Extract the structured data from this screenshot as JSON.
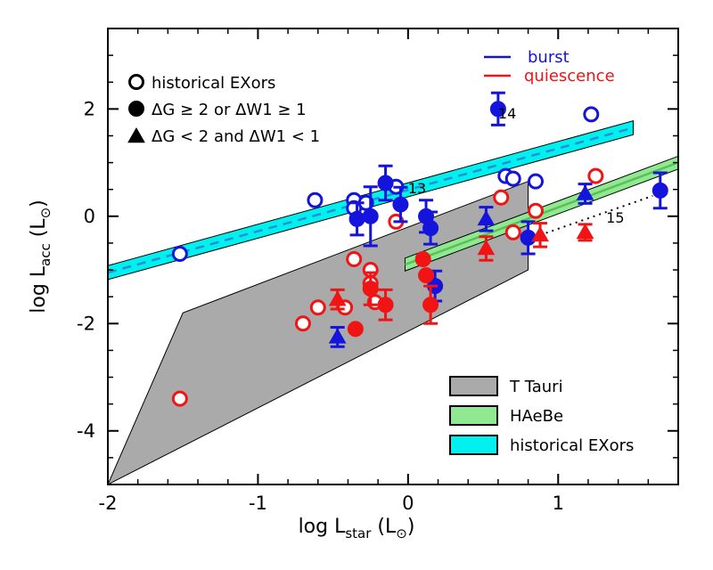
{
  "chart_data": {
    "type": "scatter",
    "xlabel": "log L",
    "xlabel_sub": "star",
    "xlabel_unit": " (L",
    "ylabel": "log L",
    "ylabel_sub": "acc",
    "ylabel_unit": " (L",
    "sun_symbol": "⊙",
    "close_paren": ")",
    "xlim": [
      -2,
      1.8
    ],
    "ylim": [
      -5,
      3.5
    ],
    "x_ticks": [
      -2,
      -1,
      0,
      1
    ],
    "x_tick_labels": [
      "-2",
      "-1",
      "0",
      "1"
    ],
    "y_ticks": [
      -4,
      -2,
      0,
      2
    ],
    "y_tick_labels": [
      "-4",
      "-2",
      "0",
      "2"
    ],
    "grid": false,
    "colors": {
      "burst": "#1414dc",
      "quiescence": "#f01414",
      "ttauri": "#aaaaaa",
      "haebe": "#90e890",
      "exors": "#00f0f0"
    },
    "regions": [
      {
        "name": "T Tauri",
        "polygon": [
          [
            -2,
            -5
          ],
          [
            -1.5,
            -1.8
          ],
          [
            0.8,
            0.65
          ],
          [
            0.8,
            -1.0
          ],
          [
            -2,
            -5
          ]
        ]
      },
      {
        "name": "HAeBe",
        "center": [
          [
            -0.02,
            -0.9
          ],
          [
            1.8,
            1.0
          ]
        ],
        "half_width": 0.12
      },
      {
        "name": "historical EXors",
        "center": [
          [
            -2,
            -1.05
          ],
          [
            1.5,
            1.65
          ]
        ],
        "half_width": 0.13
      }
    ],
    "top_legend": {
      "burst": "burst",
      "quiescence": "quiescence",
      "historical": "historical EXors",
      "big": "ΔG ≥ 2 or ΔW1 ≥ 1",
      "small": "ΔG < 2 and ΔW1 < 1"
    },
    "bottom_legend": [
      "T Tauri",
      "HAeBe",
      "historical EXors"
    ],
    "annotations": [
      {
        "text": "13",
        "x": 0.0,
        "y": 0.43
      },
      {
        "text": "14",
        "x": 0.6,
        "y": 1.82
      },
      {
        "text": "15",
        "x": 1.32,
        "y": -0.12
      }
    ],
    "dotted_line": [
      [
        0.88,
        -0.35
      ],
      [
        1.63,
        0.38
      ]
    ],
    "series": [
      {
        "name": "historical EXors (burst)",
        "marker": "open-circle",
        "color": "#1414dc",
        "points": [
          [
            -1.52,
            -0.7
          ],
          [
            -0.62,
            0.3
          ],
          [
            -0.36,
            0.3
          ],
          [
            -0.36,
            0.15
          ],
          [
            -0.28,
            0.25
          ],
          [
            -0.08,
            0.55
          ],
          [
            0.65,
            0.75
          ],
          [
            0.7,
            0.7
          ],
          [
            0.85,
            0.65
          ],
          [
            1.22,
            1.9
          ]
        ]
      },
      {
        "name": "historical EXors (quiescence)",
        "marker": "open-circle",
        "color": "#f01414",
        "points": [
          [
            -1.52,
            -3.4
          ],
          [
            -0.7,
            -2.0
          ],
          [
            -0.6,
            -1.7
          ],
          [
            -0.42,
            -1.7
          ],
          [
            -0.36,
            -0.8
          ],
          [
            -0.25,
            -1.0
          ],
          [
            -0.25,
            -1.25
          ],
          [
            -0.22,
            -1.6
          ],
          [
            -0.08,
            -0.1
          ],
          [
            0.62,
            0.35
          ],
          [
            0.7,
            -0.3
          ],
          [
            0.85,
            0.1
          ],
          [
            1.25,
            0.75
          ]
        ]
      },
      {
        "name": "ΔG ≥ 2 or ΔW1 ≥ 1 (burst)",
        "marker": "filled-circle",
        "color": "#1414dc",
        "points": [
          [
            -0.34,
            -0.05,
            0.3
          ],
          [
            -0.25,
            0.0,
            0.55
          ],
          [
            -0.15,
            0.62,
            0.32
          ],
          [
            -0.05,
            0.22,
            0.32
          ],
          [
            0.12,
            0.0,
            0.3
          ],
          [
            0.15,
            -0.22,
            0.3
          ],
          [
            0.18,
            -1.3,
            0.28
          ],
          [
            0.6,
            2.0,
            0.3
          ],
          [
            0.8,
            -0.4,
            0.3
          ],
          [
            1.68,
            0.48,
            0.33
          ]
        ]
      },
      {
        "name": "ΔG ≥ 2 or ΔW1 ≥ 1 (quiescence)",
        "marker": "filled-circle",
        "color": "#f01414",
        "points": [
          [
            -0.35,
            -2.1,
            0
          ],
          [
            -0.25,
            -1.35,
            0.3
          ],
          [
            -0.15,
            -1.65,
            0.28
          ],
          [
            0.1,
            -0.8,
            0
          ],
          [
            0.12,
            -1.1,
            0
          ],
          [
            0.15,
            -1.65,
            0.35
          ]
        ]
      },
      {
        "name": "ΔG < 2 and ΔW1 < 1 (burst)",
        "marker": "filled-triangle",
        "color": "#1414dc",
        "points": [
          [
            -0.47,
            -2.25,
            0.18
          ],
          [
            0.52,
            -0.05,
            0.22
          ],
          [
            1.18,
            0.42,
            0.18
          ]
        ]
      },
      {
        "name": "ΔG < 2 and ΔW1 < 1 (quiescence)",
        "marker": "filled-triangle",
        "color": "#f01414",
        "points": [
          [
            -0.47,
            -1.55,
            0.18
          ],
          [
            0.52,
            -0.6,
            0.22
          ],
          [
            0.88,
            -0.35,
            0.22
          ],
          [
            1.18,
            -0.3,
            0.15
          ]
        ]
      }
    ]
  }
}
